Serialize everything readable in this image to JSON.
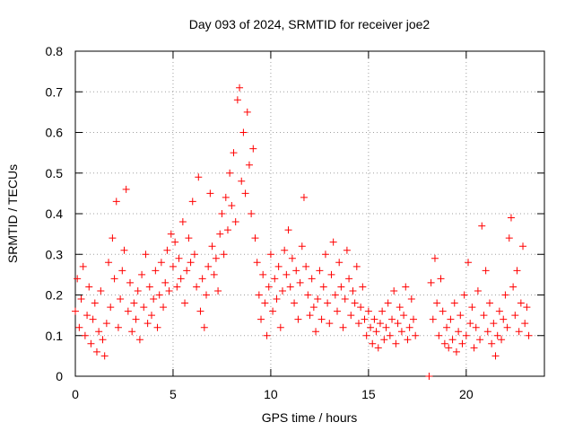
{
  "chart_data": {
    "type": "scatter",
    "title": "Day 093 of 2024, SRMTID for receiver joe2",
    "xlabel": "GPS time / hours",
    "ylabel": "SRMTID / TECUs",
    "xlim": [
      0,
      24
    ],
    "ylim": [
      0,
      0.8
    ],
    "x_ticks": [
      0,
      5,
      10,
      15,
      20
    ],
    "y_ticks": [
      0,
      0.1,
      0.2,
      0.3,
      0.4,
      0.5,
      0.6,
      0.7,
      0.8
    ],
    "x_tick_labels": [
      "0",
      "5",
      "10",
      "15",
      "20"
    ],
    "y_tick_labels": [
      "0",
      "0.1",
      "0.2",
      "0.3",
      "0.4",
      "0.5",
      "0.6",
      "0.7",
      "0.8"
    ],
    "grid": true,
    "marker": "plus",
    "color": "#ff0000",
    "series": [
      {
        "name": "SRMTID",
        "points": [
          [
            0.0,
            0.16
          ],
          [
            0.1,
            0.24
          ],
          [
            0.2,
            0.12
          ],
          [
            0.3,
            0.19
          ],
          [
            0.4,
            0.27
          ],
          [
            0.5,
            0.1
          ],
          [
            0.6,
            0.15
          ],
          [
            0.7,
            0.22
          ],
          [
            0.8,
            0.08
          ],
          [
            0.9,
            0.14
          ],
          [
            1.0,
            0.18
          ],
          [
            1.1,
            0.06
          ],
          [
            1.2,
            0.11
          ],
          [
            1.3,
            0.21
          ],
          [
            1.4,
            0.09
          ],
          [
            1.5,
            0.05
          ],
          [
            1.6,
            0.13
          ],
          [
            1.7,
            0.28
          ],
          [
            1.8,
            0.17
          ],
          [
            1.9,
            0.34
          ],
          [
            2.0,
            0.24
          ],
          [
            2.1,
            0.43
          ],
          [
            2.2,
            0.12
          ],
          [
            2.3,
            0.19
          ],
          [
            2.4,
            0.26
          ],
          [
            2.5,
            0.31
          ],
          [
            2.6,
            0.46
          ],
          [
            2.7,
            0.16
          ],
          [
            2.8,
            0.23
          ],
          [
            2.9,
            0.11
          ],
          [
            3.0,
            0.18
          ],
          [
            3.1,
            0.14
          ],
          [
            3.2,
            0.21
          ],
          [
            3.3,
            0.09
          ],
          [
            3.4,
            0.25
          ],
          [
            3.5,
            0.17
          ],
          [
            3.6,
            0.3
          ],
          [
            3.7,
            0.13
          ],
          [
            3.8,
            0.22
          ],
          [
            3.9,
            0.15
          ],
          [
            4.0,
            0.19
          ],
          [
            4.1,
            0.26
          ],
          [
            4.2,
            0.12
          ],
          [
            4.3,
            0.2
          ],
          [
            4.4,
            0.28
          ],
          [
            4.5,
            0.17
          ],
          [
            4.6,
            0.23
          ],
          [
            4.7,
            0.31
          ],
          [
            4.8,
            0.21
          ],
          [
            4.9,
            0.35
          ],
          [
            5.0,
            0.27
          ],
          [
            5.1,
            0.33
          ],
          [
            5.2,
            0.22
          ],
          [
            5.3,
            0.29
          ],
          [
            5.4,
            0.24
          ],
          [
            5.5,
            0.38
          ],
          [
            5.6,
            0.18
          ],
          [
            5.7,
            0.26
          ],
          [
            5.8,
            0.34
          ],
          [
            5.9,
            0.28
          ],
          [
            6.0,
            0.43
          ],
          [
            6.1,
            0.3
          ],
          [
            6.2,
            0.22
          ],
          [
            6.3,
            0.49
          ],
          [
            6.4,
            0.16
          ],
          [
            6.5,
            0.24
          ],
          [
            6.6,
            0.12
          ],
          [
            6.7,
            0.2
          ],
          [
            6.8,
            0.27
          ],
          [
            6.9,
            0.45
          ],
          [
            7.0,
            0.32
          ],
          [
            7.1,
            0.25
          ],
          [
            7.2,
            0.29
          ],
          [
            7.3,
            0.21
          ],
          [
            7.4,
            0.35
          ],
          [
            7.5,
            0.4
          ],
          [
            7.6,
            0.3
          ],
          [
            7.7,
            0.44
          ],
          [
            7.8,
            0.36
          ],
          [
            7.9,
            0.5
          ],
          [
            8.0,
            0.42
          ],
          [
            8.1,
            0.55
          ],
          [
            8.2,
            0.38
          ],
          [
            8.3,
            0.68
          ],
          [
            8.4,
            0.71
          ],
          [
            8.5,
            0.48
          ],
          [
            8.6,
            0.6
          ],
          [
            8.7,
            0.45
          ],
          [
            8.8,
            0.65
          ],
          [
            8.9,
            0.52
          ],
          [
            9.0,
            0.4
          ],
          [
            9.1,
            0.56
          ],
          [
            9.2,
            0.34
          ],
          [
            9.3,
            0.28
          ],
          [
            9.4,
            0.2
          ],
          [
            9.5,
            0.14
          ],
          [
            9.6,
            0.25
          ],
          [
            9.7,
            0.18
          ],
          [
            9.8,
            0.1
          ],
          [
            9.9,
            0.22
          ],
          [
            10.0,
            0.3
          ],
          [
            10.1,
            0.16
          ],
          [
            10.2,
            0.24
          ],
          [
            10.3,
            0.19
          ],
          [
            10.4,
            0.27
          ],
          [
            10.5,
            0.12
          ],
          [
            10.6,
            0.21
          ],
          [
            10.7,
            0.31
          ],
          [
            10.8,
            0.25
          ],
          [
            10.9,
            0.36
          ],
          [
            11.0,
            0.22
          ],
          [
            11.1,
            0.29
          ],
          [
            11.2,
            0.18
          ],
          [
            11.3,
            0.26
          ],
          [
            11.4,
            0.14
          ],
          [
            11.5,
            0.23
          ],
          [
            11.6,
            0.32
          ],
          [
            11.7,
            0.44
          ],
          [
            11.8,
            0.27
          ],
          [
            11.9,
            0.2
          ],
          [
            12.0,
            0.15
          ],
          [
            12.1,
            0.24
          ],
          [
            12.2,
            0.17
          ],
          [
            12.3,
            0.11
          ],
          [
            12.4,
            0.19
          ],
          [
            12.5,
            0.26
          ],
          [
            12.6,
            0.14
          ],
          [
            12.7,
            0.22
          ],
          [
            12.8,
            0.3
          ],
          [
            12.9,
            0.18
          ],
          [
            13.0,
            0.13
          ],
          [
            13.1,
            0.25
          ],
          [
            13.2,
            0.33
          ],
          [
            13.3,
            0.2
          ],
          [
            13.4,
            0.16
          ],
          [
            13.5,
            0.28
          ],
          [
            13.6,
            0.22
          ],
          [
            13.7,
            0.12
          ],
          [
            13.8,
            0.19
          ],
          [
            13.9,
            0.31
          ],
          [
            14.0,
            0.24
          ],
          [
            14.1,
            0.15
          ],
          [
            14.2,
            0.21
          ],
          [
            14.3,
            0.18
          ],
          [
            14.4,
            0.27
          ],
          [
            14.5,
            0.13
          ],
          [
            14.6,
            0.17
          ],
          [
            14.7,
            0.22
          ],
          [
            14.8,
            0.14
          ],
          [
            14.9,
            0.1
          ],
          [
            15.0,
            0.16
          ],
          [
            15.1,
            0.12
          ],
          [
            15.2,
            0.08
          ],
          [
            15.3,
            0.14
          ],
          [
            15.4,
            0.11
          ],
          [
            15.5,
            0.07
          ],
          [
            15.6,
            0.13
          ],
          [
            15.7,
            0.16
          ],
          [
            15.8,
            0.09
          ],
          [
            15.9,
            0.12
          ],
          [
            16.0,
            0.18
          ],
          [
            16.1,
            0.1
          ],
          [
            16.2,
            0.14
          ],
          [
            16.3,
            0.21
          ],
          [
            16.4,
            0.08
          ],
          [
            16.5,
            0.13
          ],
          [
            16.6,
            0.17
          ],
          [
            16.7,
            0.11
          ],
          [
            16.8,
            0.15
          ],
          [
            16.9,
            0.22
          ],
          [
            17.0,
            0.09
          ],
          [
            17.1,
            0.12
          ],
          [
            17.2,
            0.19
          ],
          [
            17.3,
            0.14
          ],
          [
            17.4,
            0.1
          ],
          [
            18.1,
            0.0
          ],
          [
            18.2,
            0.23
          ],
          [
            18.3,
            0.14
          ],
          [
            18.4,
            0.29
          ],
          [
            18.5,
            0.18
          ],
          [
            18.6,
            0.1
          ],
          [
            18.7,
            0.24
          ],
          [
            18.8,
            0.16
          ],
          [
            18.9,
            0.08
          ],
          [
            19.0,
            0.12
          ],
          [
            19.1,
            0.07
          ],
          [
            19.2,
            0.14
          ],
          [
            19.3,
            0.09
          ],
          [
            19.4,
            0.18
          ],
          [
            19.5,
            0.06
          ],
          [
            19.6,
            0.11
          ],
          [
            19.7,
            0.15
          ],
          [
            19.8,
            0.08
          ],
          [
            19.9,
            0.2
          ],
          [
            20.0,
            0.1
          ],
          [
            20.1,
            0.28
          ],
          [
            20.2,
            0.13
          ],
          [
            20.3,
            0.17
          ],
          [
            20.4,
            0.07
          ],
          [
            20.5,
            0.12
          ],
          [
            20.6,
            0.21
          ],
          [
            20.7,
            0.09
          ],
          [
            20.8,
            0.37
          ],
          [
            20.9,
            0.15
          ],
          [
            21.0,
            0.26
          ],
          [
            21.1,
            0.11
          ],
          [
            21.2,
            0.18
          ],
          [
            21.3,
            0.08
          ],
          [
            21.4,
            0.13
          ],
          [
            21.5,
            0.05
          ],
          [
            21.6,
            0.1
          ],
          [
            21.7,
            0.16
          ],
          [
            21.8,
            0.09
          ],
          [
            21.9,
            0.14
          ],
          [
            22.0,
            0.2
          ],
          [
            22.1,
            0.12
          ],
          [
            22.2,
            0.34
          ],
          [
            22.3,
            0.39
          ],
          [
            22.4,
            0.22
          ],
          [
            22.5,
            0.15
          ],
          [
            22.6,
            0.26
          ],
          [
            22.7,
            0.11
          ],
          [
            22.8,
            0.18
          ],
          [
            22.9,
            0.32
          ],
          [
            23.0,
            0.13
          ],
          [
            23.1,
            0.17
          ],
          [
            23.2,
            0.1
          ]
        ]
      }
    ]
  }
}
